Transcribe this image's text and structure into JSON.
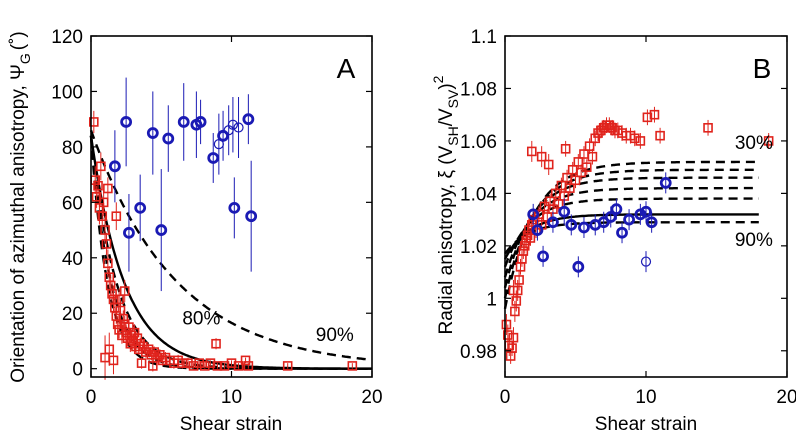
{
  "chart_data": [
    {
      "type": "scatter",
      "panel_label": "A",
      "xlabel": "Shear strain",
      "ylabel": "Orientation of azimuthal anisotropy, Ψ",
      "ylabel_sub": "G",
      "ylabel_unit": "(˚)",
      "xlim": [
        0,
        20
      ],
      "ylim": [
        -3,
        120
      ],
      "xticks": [
        0,
        10,
        20
      ],
      "yticks": [
        0,
        20,
        40,
        60,
        80,
        100,
        120
      ],
      "annotations": [
        {
          "text": "80%",
          "x": 6.5,
          "y": 16
        },
        {
          "text": "90%",
          "x": 16.0,
          "y": 10
        }
      ],
      "curves": [
        {
          "name": "fit-solid",
          "style": "solid",
          "a": 84,
          "k": 0.42
        },
        {
          "name": "fit-dash-80a",
          "style": "dashed",
          "a": 84,
          "k": 0.55
        },
        {
          "name": "fit-dash-80b",
          "style": "dashed",
          "a": 84,
          "k": 0.7
        },
        {
          "name": "fit-dash-80c",
          "style": "dashed",
          "a": 84,
          "k": 0.85
        },
        {
          "name": "fit-dash-90",
          "style": "dashed",
          "a": 86,
          "k": 0.165
        }
      ],
      "series": [
        {
          "name": "red-squares",
          "color": "#e0231c",
          "marker": "square",
          "points": [
            [
              0.2,
              89,
              4
            ],
            [
              0.3,
              68,
              5
            ],
            [
              0.4,
              62,
              4
            ],
            [
              0.5,
              66,
              4
            ],
            [
              0.6,
              58,
              6
            ],
            [
              0.7,
              73,
              5
            ],
            [
              0.8,
              55,
              4
            ],
            [
              0.9,
              60,
              5
            ],
            [
              1.0,
              50,
              5
            ],
            [
              1.1,
              45,
              4
            ],
            [
              1.2,
              38,
              5
            ],
            [
              1.3,
              33,
              4
            ],
            [
              1.4,
              30,
              4
            ],
            [
              1.5,
              27,
              4
            ],
            [
              1.6,
              25,
              5
            ],
            [
              1.7,
              22,
              4
            ],
            [
              1.8,
              19,
              3
            ],
            [
              1.9,
              16,
              3
            ],
            [
              2.0,
              14,
              3
            ],
            [
              2.1,
              21,
              4
            ],
            [
              2.2,
              12,
              3
            ],
            [
              2.3,
              18,
              3
            ],
            [
              2.4,
              16,
              3
            ],
            [
              2.5,
              13,
              3
            ],
            [
              2.6,
              11,
              3
            ],
            [
              2.7,
              15,
              3
            ],
            [
              2.8,
              9,
              3
            ],
            [
              2.9,
              12,
              2
            ],
            [
              3.0,
              10,
              2
            ],
            [
              3.1,
              13,
              3
            ],
            [
              3.2,
              8,
              2
            ],
            [
              3.3,
              11,
              2
            ],
            [
              3.4,
              7,
              2
            ],
            [
              3.5,
              9,
              2
            ],
            [
              3.7,
              8,
              2
            ],
            [
              3.9,
              6,
              2
            ],
            [
              4.1,
              7,
              2
            ],
            [
              4.3,
              5,
              2
            ],
            [
              4.5,
              6,
              2
            ],
            [
              4.7,
              4,
              2
            ],
            [
              4.9,
              5,
              2
            ],
            [
              5.1,
              3,
              2
            ],
            [
              5.3,
              4,
              2
            ],
            [
              5.6,
              3,
              2
            ],
            [
              5.9,
              2,
              2
            ],
            [
              6.2,
              3,
              2
            ],
            [
              6.5,
              2,
              2
            ],
            [
              6.9,
              2,
              2
            ],
            [
              7.3,
              1,
              1
            ],
            [
              7.7,
              2,
              1
            ],
            [
              8.1,
              1,
              1
            ],
            [
              8.5,
              2,
              1
            ],
            [
              9.0,
              1,
              1
            ],
            [
              9.5,
              1,
              1
            ],
            [
              10.0,
              2,
              1
            ],
            [
              10.5,
              1,
              1
            ],
            [
              11.2,
              1,
              1
            ],
            [
              18.6,
              1,
              1
            ],
            [
              1.0,
              4,
              8
            ],
            [
              1.3,
              7,
              6
            ],
            [
              1.6,
              3,
              5
            ],
            [
              2.4,
              28,
              4
            ],
            [
              2.0,
              25,
              4
            ],
            [
              3.6,
              2,
              2
            ],
            [
              4.4,
              1,
              2
            ],
            [
              8.9,
              9,
              2
            ],
            [
              11.0,
              3,
              1
            ],
            [
              14.0,
              1,
              1
            ],
            [
              1.8,
              55,
              5
            ],
            [
              1.2,
              65,
              4
            ]
          ]
        },
        {
          "name": "blue-circles",
          "color": "#1a1ab4",
          "marker": "circle",
          "points": [
            [
              1.7,
              73,
              13,
              1
            ],
            [
              2.5,
              89,
              16,
              1
            ],
            [
              2.7,
              49,
              14,
              1
            ],
            [
              3.5,
              58,
              12,
              1
            ],
            [
              4.4,
              85,
              15,
              1
            ],
            [
              5.0,
              50,
              22,
              1
            ],
            [
              5.5,
              83,
              12,
              1
            ],
            [
              6.6,
              89,
              14,
              1
            ],
            [
              7.5,
              88,
              12,
              1
            ],
            [
              7.8,
              89,
              8,
              1
            ],
            [
              8.7,
              76,
              9,
              1
            ],
            [
              9.1,
              81,
              11,
              0
            ],
            [
              9.4,
              84,
              9,
              1
            ],
            [
              9.8,
              86,
              9,
              0
            ],
            [
              10.1,
              88,
              10,
              0
            ],
            [
              10.2,
              58,
              11,
              1
            ],
            [
              10.5,
              87,
              11,
              0
            ],
            [
              11.2,
              90,
              9,
              1
            ],
            [
              11.4,
              55,
              20,
              1
            ]
          ]
        }
      ]
    },
    {
      "type": "scatter",
      "panel_label": "B",
      "xlabel": "Shear strain",
      "ylabel": "Radial anisotropy, ξ (V",
      "ylabel_sub1": "SH",
      "ylabel_mid": "/V",
      "ylabel_sub2": "SV",
      "ylabel_end": ")",
      "ylabel_sup": "2",
      "xlim": [
        0,
        20
      ],
      "ylim": [
        0.97,
        1.1
      ],
      "xticks": [
        0,
        10,
        20
      ],
      "yticks": [
        "0.98",
        "1",
        "1.02",
        "1.04",
        "1.06",
        "1.08",
        "1.1"
      ],
      "annotations": [
        {
          "text": "30%",
          "x": 16.3,
          "y": 1.057
        },
        {
          "text": "90%",
          "x": 16.3,
          "y": 1.02
        }
      ],
      "curves": [
        {
          "name": "fit-dash-30",
          "style": "dashed",
          "y0": 0.996,
          "ymax": 1.052,
          "k": 0.5,
          "xend": 18
        },
        {
          "name": "fit-dash-40",
          "style": "dashed",
          "y0": 1.0,
          "ymax": 1.049,
          "k": 0.52,
          "xend": 18
        },
        {
          "name": "fit-dash-50",
          "style": "dashed",
          "y0": 1.004,
          "ymax": 1.046,
          "k": 0.54,
          "xend": 18
        },
        {
          "name": "fit-dash-60",
          "style": "dashed",
          "y0": 1.008,
          "ymax": 1.042,
          "k": 0.56,
          "xend": 18
        },
        {
          "name": "fit-dash-70",
          "style": "dashed",
          "y0": 1.012,
          "ymax": 1.038,
          "k": 0.58,
          "xend": 18
        },
        {
          "name": "fit-solid-80",
          "style": "solid",
          "y0": 1.015,
          "ymax": 1.032,
          "k": 0.6,
          "xend": 18
        },
        {
          "name": "fit-dash-90",
          "style": "dashed",
          "y0": 1.017,
          "ymax": 1.029,
          "k": 0.62,
          "xend": 18
        }
      ],
      "series": [
        {
          "name": "red-squares",
          "color": "#e0231c",
          "marker": "square",
          "points": [
            [
              0.1,
              0.99,
              0.004
            ],
            [
              0.2,
              0.986,
              0.004
            ],
            [
              0.3,
              0.982,
              0.004
            ],
            [
              0.4,
              0.978,
              0.003
            ],
            [
              0.5,
              0.981,
              0.003
            ],
            [
              0.6,
              0.985,
              0.004
            ],
            [
              0.7,
              0.995,
              0.004
            ],
            [
              0.8,
              0.999,
              0.004
            ],
            [
              0.9,
              1.003,
              0.004
            ],
            [
              1.0,
              1.007,
              0.004
            ],
            [
              1.1,
              1.012,
              0.003
            ],
            [
              1.2,
              1.015,
              0.003
            ],
            [
              1.3,
              1.018,
              0.003
            ],
            [
              1.4,
              1.02,
              0.003
            ],
            [
              1.5,
              1.022,
              0.003
            ],
            [
              1.6,
              1.024,
              0.003
            ],
            [
              1.7,
              1.026,
              0.003
            ],
            [
              1.8,
              1.023,
              0.003
            ],
            [
              1.9,
              1.028,
              0.003
            ],
            [
              2.0,
              1.03,
              0.003
            ],
            [
              2.2,
              1.026,
              0.003
            ],
            [
              2.4,
              1.032,
              0.003
            ],
            [
              2.6,
              1.028,
              0.003
            ],
            [
              2.8,
              1.035,
              0.003
            ],
            [
              3.0,
              1.031,
              0.003
            ],
            [
              3.2,
              1.037,
              0.003
            ],
            [
              3.4,
              1.034,
              0.003
            ],
            [
              3.6,
              1.04,
              0.003
            ],
            [
              3.8,
              1.036,
              0.003
            ],
            [
              4.0,
              1.043,
              0.003
            ],
            [
              4.2,
              1.039,
              0.003
            ],
            [
              4.4,
              1.046,
              0.003
            ],
            [
              4.6,
              1.042,
              0.003
            ],
            [
              4.8,
              1.049,
              0.003
            ],
            [
              5.0,
              1.045,
              0.003
            ],
            [
              5.2,
              1.052,
              0.003
            ],
            [
              5.4,
              1.048,
              0.003
            ],
            [
              5.6,
              1.055,
              0.003
            ],
            [
              5.8,
              1.05,
              0.003
            ],
            [
              6.0,
              1.058,
              0.003
            ],
            [
              6.2,
              1.054,
              0.003
            ],
            [
              6.4,
              1.061,
              0.003
            ],
            [
              6.6,
              1.063,
              0.003
            ],
            [
              6.8,
              1.064,
              0.003
            ],
            [
              7.0,
              1.065,
              0.003
            ],
            [
              7.2,
              1.066,
              0.003
            ],
            [
              7.4,
              1.066,
              0.003
            ],
            [
              7.6,
              1.065,
              0.003
            ],
            [
              7.8,
              1.064,
              0.003
            ],
            [
              8.0,
              1.064,
              0.003
            ],
            [
              8.3,
              1.063,
              0.003
            ],
            [
              8.6,
              1.062,
              0.003
            ],
            [
              8.9,
              1.062,
              0.003
            ],
            [
              9.2,
              1.061,
              0.003
            ],
            [
              9.6,
              1.06,
              0.003
            ],
            [
              10.1,
              1.069,
              0.003
            ],
            [
              10.6,
              1.07,
              0.003
            ],
            [
              11.0,
              1.062,
              0.003
            ],
            [
              14.4,
              1.065,
              0.003
            ],
            [
              18.7,
              1.06,
              0.003
            ],
            [
              1.9,
              1.056,
              0.004
            ],
            [
              3.1,
              1.051,
              0.004
            ],
            [
              4.3,
              1.057,
              0.003
            ],
            [
              2.6,
              1.054,
              0.004
            ],
            [
              0.6,
              1.003,
              0.004
            ]
          ]
        },
        {
          "name": "blue-circles",
          "color": "#1a1ab4",
          "marker": "circle",
          "points": [
            [
              2.0,
              1.032,
              0.004,
              1
            ],
            [
              2.3,
              1.026,
              0.004,
              1
            ],
            [
              2.7,
              1.016,
              0.004,
              1
            ],
            [
              3.4,
              1.029,
              0.004,
              1
            ],
            [
              4.2,
              1.033,
              0.005,
              1
            ],
            [
              4.7,
              1.028,
              0.004,
              1
            ],
            [
              5.2,
              1.012,
              0.004,
              1
            ],
            [
              5.6,
              1.027,
              0.004,
              1
            ],
            [
              6.4,
              1.028,
              0.004,
              1
            ],
            [
              7.0,
              1.029,
              0.004,
              1
            ],
            [
              7.5,
              1.031,
              0.004,
              1
            ],
            [
              7.9,
              1.034,
              0.004,
              1
            ],
            [
              8.3,
              1.025,
              0.004,
              1
            ],
            [
              8.8,
              1.03,
              0.004,
              1
            ],
            [
              9.6,
              1.032,
              0.004,
              1
            ],
            [
              10.0,
              1.033,
              0.004,
              1
            ],
            [
              10.4,
              1.029,
              0.004,
              1
            ],
            [
              10.0,
              1.014,
              0.004,
              0
            ],
            [
              11.4,
              1.044,
              0.004,
              1
            ]
          ]
        }
      ]
    }
  ]
}
